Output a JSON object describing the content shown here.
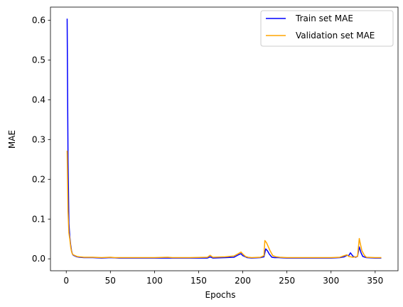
{
  "chart_data": {
    "type": "line",
    "title": "",
    "xlabel": "Epochs",
    "ylabel": "MAE",
    "xlim": [
      -17.9,
      375.9
    ],
    "ylim": [
      -0.03,
      0.633
    ],
    "xticks": [
      0,
      50,
      100,
      150,
      200,
      250,
      300,
      350
    ],
    "yticks": [
      0.0,
      0.1,
      0.2,
      0.3,
      0.4,
      0.5,
      0.6
    ],
    "xtick_labels": [
      "0",
      "50",
      "100",
      "150",
      "200",
      "250",
      "300",
      "350"
    ],
    "ytick_labels": [
      "0.0",
      "0.1",
      "0.2",
      "0.3",
      "0.4",
      "0.5",
      "0.6"
    ],
    "grid": false,
    "legend_position": "top-right",
    "series": [
      {
        "name": "Train set MAE",
        "color": "#0000ff",
        "x": [
          1,
          2,
          3,
          4,
          5,
          6,
          7,
          8,
          10,
          12,
          15,
          20,
          30,
          40,
          50,
          60,
          80,
          100,
          120,
          140,
          160,
          163,
          166,
          180,
          190,
          195,
          198,
          200,
          205,
          210,
          220,
          224,
          226,
          228,
          230,
          233,
          236,
          240,
          250,
          260,
          280,
          300,
          310,
          315,
          318,
          320,
          322,
          325,
          328,
          330,
          332,
          334,
          336,
          340,
          350,
          357
        ],
        "y": [
          0.604,
          0.25,
          0.09,
          0.055,
          0.035,
          0.02,
          0.012,
          0.009,
          0.007,
          0.005,
          0.004,
          0.003,
          0.003,
          0.002,
          0.003,
          0.002,
          0.002,
          0.002,
          0.002,
          0.002,
          0.002,
          0.005,
          0.002,
          0.003,
          0.004,
          0.01,
          0.013,
          0.008,
          0.003,
          0.002,
          0.003,
          0.005,
          0.025,
          0.02,
          0.012,
          0.004,
          0.003,
          0.003,
          0.002,
          0.002,
          0.002,
          0.002,
          0.003,
          0.005,
          0.009,
          0.008,
          0.015,
          0.006,
          0.004,
          0.006,
          0.03,
          0.015,
          0.006,
          0.003,
          0.002,
          0.002
        ]
      },
      {
        "name": "Validation set MAE",
        "color": "#ffa500",
        "x": [
          1,
          2,
          3,
          4,
          5,
          6,
          7,
          8,
          10,
          12,
          15,
          20,
          25,
          30,
          40,
          50,
          55,
          60,
          80,
          100,
          115,
          120,
          140,
          160,
          163,
          166,
          180,
          190,
          195,
          198,
          200,
          203,
          206,
          210,
          220,
          224,
          225,
          227,
          229,
          231,
          234,
          238,
          242,
          250,
          260,
          280,
          300,
          310,
          315,
          318,
          320,
          325,
          330,
          332,
          333,
          335,
          338,
          340,
          350,
          357
        ],
        "y": [
          0.272,
          0.12,
          0.065,
          0.05,
          0.03,
          0.018,
          0.012,
          0.01,
          0.008,
          0.006,
          0.005,
          0.004,
          0.004,
          0.004,
          0.003,
          0.004,
          0.003,
          0.003,
          0.003,
          0.003,
          0.004,
          0.003,
          0.003,
          0.004,
          0.009,
          0.004,
          0.005,
          0.007,
          0.013,
          0.017,
          0.012,
          0.006,
          0.004,
          0.003,
          0.004,
          0.008,
          0.046,
          0.04,
          0.03,
          0.02,
          0.008,
          0.005,
          0.004,
          0.003,
          0.003,
          0.003,
          0.003,
          0.004,
          0.008,
          0.01,
          0.006,
          0.004,
          0.006,
          0.051,
          0.04,
          0.02,
          0.008,
          0.004,
          0.003,
          0.003
        ]
      }
    ]
  }
}
